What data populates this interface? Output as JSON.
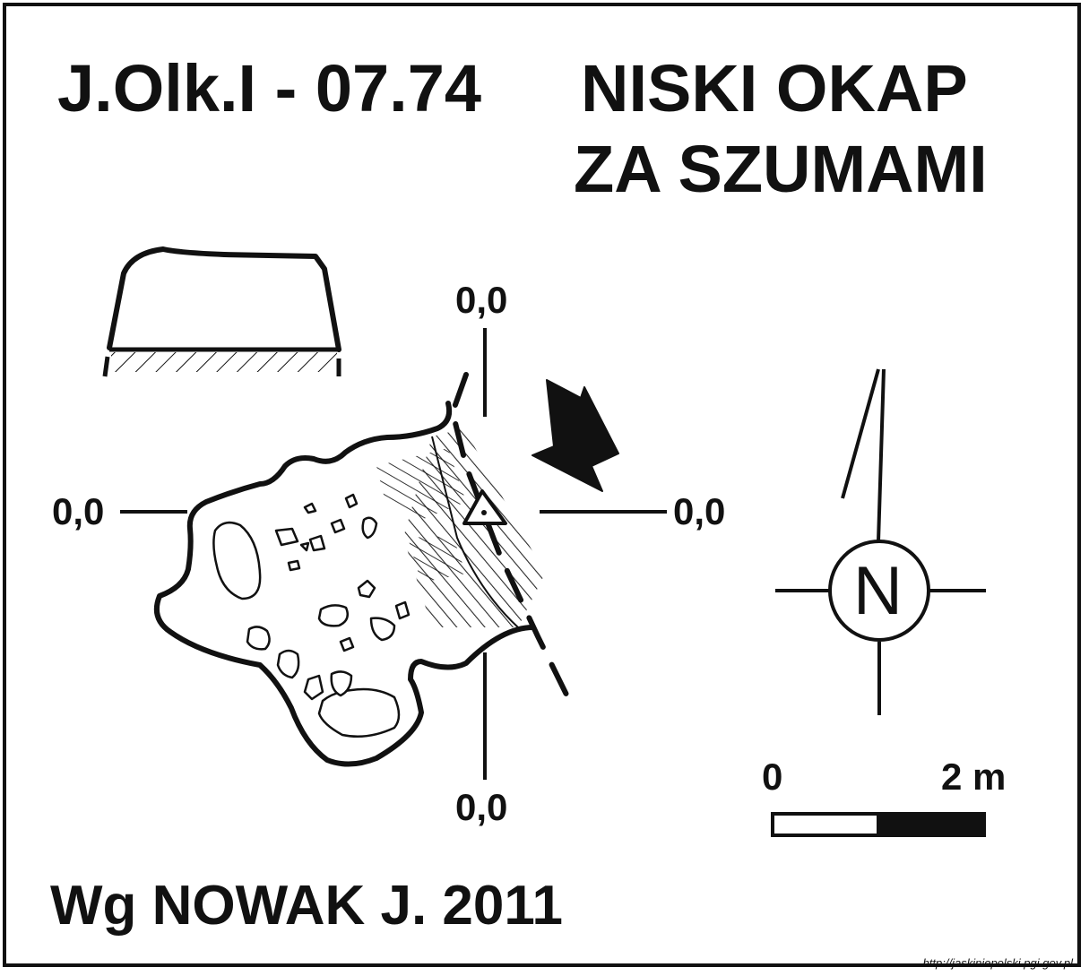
{
  "title": {
    "code": "J.Olk.I - 07.74",
    "name_line1": "NISKI OKAP",
    "name_line2": "ZA SZUMAMI"
  },
  "coordinates": {
    "top": "0,0",
    "left": "0,0",
    "right": "0,0",
    "bottom": "0,0"
  },
  "north_arrow": {
    "label": "N",
    "icon": "north-arrow-icon"
  },
  "scale_bar": {
    "start_label": "0",
    "end_label": "2 m"
  },
  "author": "Wg NOWAK J. 2011",
  "source_url": "http://jaskiniepolski.pgi.gov.pl",
  "colors": {
    "ink": "#111111",
    "paper": "#ffffff"
  }
}
